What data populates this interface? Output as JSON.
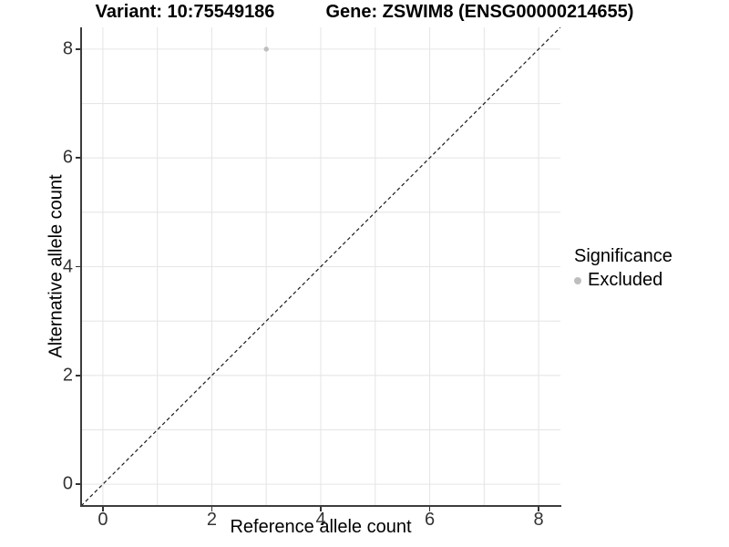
{
  "chart_data": {
    "type": "scatter",
    "title_variant": "Variant: 10:75549186",
    "title_gene": "Gene: ZSWIM8 (ENSG00000214655)",
    "xlabel": "Reference allele count",
    "ylabel": "Alternative allele count",
    "xlim": [
      -0.4,
      8.4
    ],
    "ylim": [
      -0.4,
      8.4
    ],
    "xticks": [
      0,
      2,
      4,
      6,
      8
    ],
    "yticks": [
      0,
      2,
      4,
      6,
      8
    ],
    "grid": true,
    "grid_unit": 1,
    "points": [
      {
        "x": 3,
        "y": 8,
        "series": "Excluded"
      }
    ],
    "identity_line": {
      "style": "dashed",
      "from": [
        -0.4,
        -0.4
      ],
      "to": [
        8.4,
        8.4
      ]
    },
    "legend": {
      "title": "Significance",
      "position": "right",
      "items": [
        {
          "label": "Excluded",
          "color": "#bebebe"
        }
      ]
    },
    "colors": {
      "background": "#ffffff",
      "grid": "#e6e6e6",
      "axis_line": "#3c3c3c",
      "tick_text": "#333333",
      "text": "#000000",
      "dashed_line": "#1a1a1a"
    }
  }
}
